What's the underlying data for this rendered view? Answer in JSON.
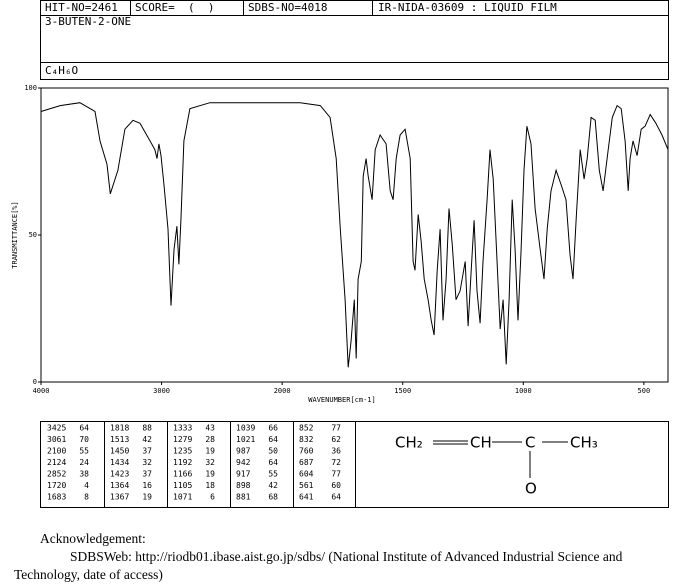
{
  "header": {
    "hit_no": "HIT-NO=2461",
    "score": "SCORE=  (  )",
    "sdbs_no": "SDBS-NO=4018",
    "ir_code": "IR-NIDA-03609 : LIQUID FILM",
    "compound": "3-BUTEN-2-ONE",
    "formula": "C₄H₆O"
  },
  "chart_data": {
    "type": "line",
    "y_label": "TRANSMITTANCE[%]",
    "x_label": "WAVENUMBER[cm-1]",
    "color": "#000000",
    "xlim": [
      4000,
      400
    ],
    "ylim": [
      0,
      100
    ],
    "xticks": [
      4000,
      3000,
      2000,
      1500,
      1000,
      500
    ],
    "yticks": [
      0,
      50,
      100
    ],
    "x_scale_change": {
      "at": 2000,
      "factor": 2
    },
    "x": [
      4000,
      3842,
      3677,
      3552,
      3511,
      3453,
      3425,
      3362,
      3304,
      3237,
      3179,
      3096,
      3055,
      3038,
      3022,
      3005,
      2980,
      2947,
      2922,
      2897,
      2873,
      2856,
      2840,
      2815,
      2765,
      2599,
      2350,
      2102,
      2000,
      1925,
      1842,
      1801,
      1776,
      1759,
      1739,
      1726,
      1714,
      1701,
      1693,
      1685,
      1672,
      1664,
      1652,
      1643,
      1627,
      1614,
      1594,
      1569,
      1552,
      1540,
      1527,
      1511,
      1490,
      1469,
      1457,
      1449,
      1436,
      1424,
      1411,
      1395,
      1382,
      1370,
      1357,
      1345,
      1333,
      1320,
      1308,
      1295,
      1279,
      1262,
      1241,
      1229,
      1216,
      1204,
      1192,
      1179,
      1167,
      1150,
      1138,
      1125,
      1113,
      1096,
      1084,
      1071,
      1059,
      1046,
      1034,
      1022,
      1009,
      997,
      985,
      968,
      951,
      930,
      914,
      901,
      885,
      864,
      843,
      823,
      806,
      794,
      781,
      764,
      748,
      735,
      719,
      702,
      685,
      669,
      648,
      631,
      611,
      594,
      578,
      565,
      557,
      545,
      528,
      511,
      495,
      474,
      450,
      425,
      400
    ],
    "values": [
      92,
      94,
      95,
      92,
      82,
      74,
      64,
      72,
      86,
      89,
      88,
      82,
      79,
      76,
      81,
      77,
      67,
      52,
      26,
      45,
      53,
      40,
      55,
      82,
      93,
      95,
      95,
      95,
      95,
      95,
      94,
      90,
      76,
      52,
      28,
      5,
      14,
      28,
      8,
      35,
      41,
      70,
      76,
      70,
      62,
      79,
      84,
      81,
      65,
      62,
      76,
      84,
      86,
      76,
      41,
      38,
      57,
      48,
      35,
      28,
      21,
      16,
      38,
      52,
      21,
      35,
      59,
      47,
      28,
      31,
      41,
      19,
      38,
      55,
      31,
      20,
      41,
      62,
      79,
      69,
      48,
      18,
      28,
      6,
      28,
      62,
      45,
      21,
      45,
      72,
      87,
      81,
      59,
      45,
      35,
      52,
      65,
      72,
      67,
      62,
      43,
      35,
      55,
      79,
      69,
      76,
      90,
      89,
      72,
      65,
      79,
      90,
      94,
      93,
      82,
      65,
      76,
      82,
      77,
      86,
      87,
      91,
      88,
      84,
      79
    ]
  },
  "peak_table": {
    "rows": [
      [
        3425,
        64,
        1818,
        88,
        1333,
        43,
        1039,
        66,
        852,
        77
      ],
      [
        3061,
        70,
        1513,
        42,
        1279,
        28,
        1021,
        64,
        832,
        62
      ],
      [
        2100,
        55,
        1450,
        37,
        1235,
        19,
        987,
        50,
        760,
        36
      ],
      [
        2124,
        24,
        1434,
        32,
        1192,
        32,
        942,
        64,
        687,
        72
      ],
      [
        2852,
        38,
        1423,
        37,
        1166,
        19,
        917,
        55,
        604,
        77
      ],
      [
        1720,
        4,
        1364,
        16,
        1105,
        18,
        898,
        42,
        561,
        60
      ],
      [
        1683,
        8,
        1367,
        19,
        1071,
        6,
        881,
        68,
        641,
        64
      ]
    ]
  },
  "structure": {
    "atoms": [
      "CH₂",
      "CH",
      "C",
      "CH₃",
      "O"
    ]
  },
  "acknowledgement": {
    "title": "Acknowledgement:",
    "text": "SDBSWeb: http://riodb01.ibase.aist.go.jp/sdbs/ (National Institute of Advanced Industrial Science and Technology, date of access)"
  }
}
